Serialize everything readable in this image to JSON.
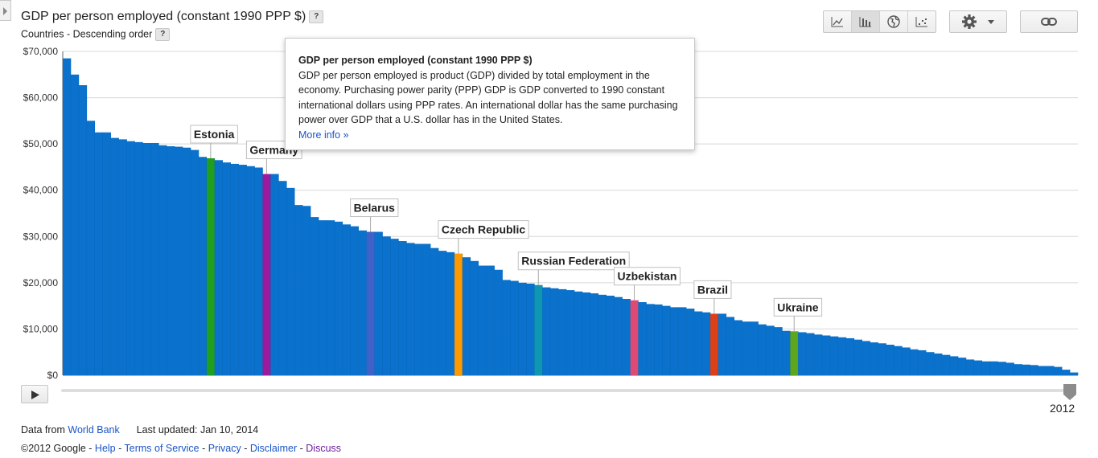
{
  "header": {
    "title": "GDP per person employed (constant 1990 PPP $)",
    "subtitle": "Countries - Descending order",
    "help_label": "?"
  },
  "toolbar": {
    "views": [
      {
        "name": "line-chart-icon",
        "active": false
      },
      {
        "name": "bar-chart-icon",
        "active": true
      },
      {
        "name": "map-icon",
        "active": false
      },
      {
        "name": "scatter-icon",
        "active": false
      }
    ],
    "settings_icon": "gear-icon",
    "link_icon": "link-icon"
  },
  "tooltip": {
    "title": "GDP per person employed (constant 1990 PPP $)",
    "body": "GDP per person employed is product (GDP) divided by total employment in the economy. Purchasing power parity (PPP) GDP is GDP converted to 1990 constant international dollars using PPP rates. An international dollar has the same purchasing power over GDP that a U.S. dollar has in the United States.",
    "link": "More info »"
  },
  "timeline": {
    "year": "2012",
    "position": 1.0
  },
  "footer": {
    "data_from": "Data from",
    "source": "World Bank",
    "last_updated": "Last updated: Jan 10, 2014",
    "copyright": "©2012 Google -",
    "links": [
      "Help",
      "Terms of Service",
      "Privacy",
      "Disclaimer",
      "Discuss"
    ],
    "separator": " - "
  },
  "colors": {
    "bar": "#0a72cc",
    "accent_link": "#1a55c7"
  },
  "chart_data": {
    "type": "bar",
    "title": "GDP per person employed (constant 1990 PPP $)",
    "ylim": [
      0,
      70000
    ],
    "yticks": [
      "$0",
      "$10,000",
      "$20,000",
      "$30,000",
      "$40,000",
      "$50,000",
      "$60,000",
      "$70,000"
    ],
    "grid": true,
    "values": [
      68500,
      65000,
      62700,
      55000,
      52500,
      52500,
      51300,
      51000,
      50600,
      50400,
      50200,
      50200,
      49700,
      49500,
      49400,
      49200,
      48700,
      47200,
      46900,
      46500,
      46000,
      45700,
      45500,
      45200,
      44900,
      43500,
      43500,
      42000,
      40500,
      36800,
      36600,
      34200,
      33500,
      33500,
      33200,
      32600,
      32200,
      31300,
      31000,
      31000,
      30000,
      29500,
      29000,
      28600,
      28400,
      28400,
      27500,
      26900,
      26600,
      26300,
      25500,
      24700,
      23700,
      23700,
      22800,
      20600,
      20400,
      20000,
      19800,
      19500,
      19000,
      18800,
      18600,
      18400,
      18100,
      17900,
      17700,
      17400,
      17200,
      16900,
      16500,
      16200,
      15800,
      15400,
      15300,
      15000,
      14700,
      14700,
      14400,
      13800,
      13600,
      13300,
      13300,
      12600,
      11900,
      11600,
      11600,
      11000,
      10700,
      10400,
      9600,
      9500,
      9300,
      9100,
      8800,
      8600,
      8400,
      8200,
      8000,
      7700,
      7400,
      7100,
      6900,
      6600,
      6300,
      6000,
      5600,
      5400,
      5000,
      4700,
      4400,
      4100,
      3800,
      3400,
      3200,
      3000,
      3000,
      2900,
      2700,
      2400,
      2300,
      2200,
      2000,
      2000,
      1800,
      1200,
      600
    ],
    "highlights": [
      {
        "label": "Estonia",
        "index": 18,
        "color": "#1f9e1f"
      },
      {
        "label": "Germany",
        "index": 25,
        "color": "#9c1a9c"
      },
      {
        "label": "Belarus",
        "index": 38,
        "color": "#3f62c9"
      },
      {
        "label": "Czech Republic",
        "index": 49,
        "color": "#ff9900"
      },
      {
        "label": "Russian Federation",
        "index": 59,
        "color": "#0f96b0"
      },
      {
        "label": "Uzbekistan",
        "index": 71,
        "color": "#de4a74"
      },
      {
        "label": "Brazil",
        "index": 81,
        "color": "#dd3f17"
      },
      {
        "label": "Ukraine",
        "index": 91,
        "color": "#5da61e"
      }
    ]
  }
}
